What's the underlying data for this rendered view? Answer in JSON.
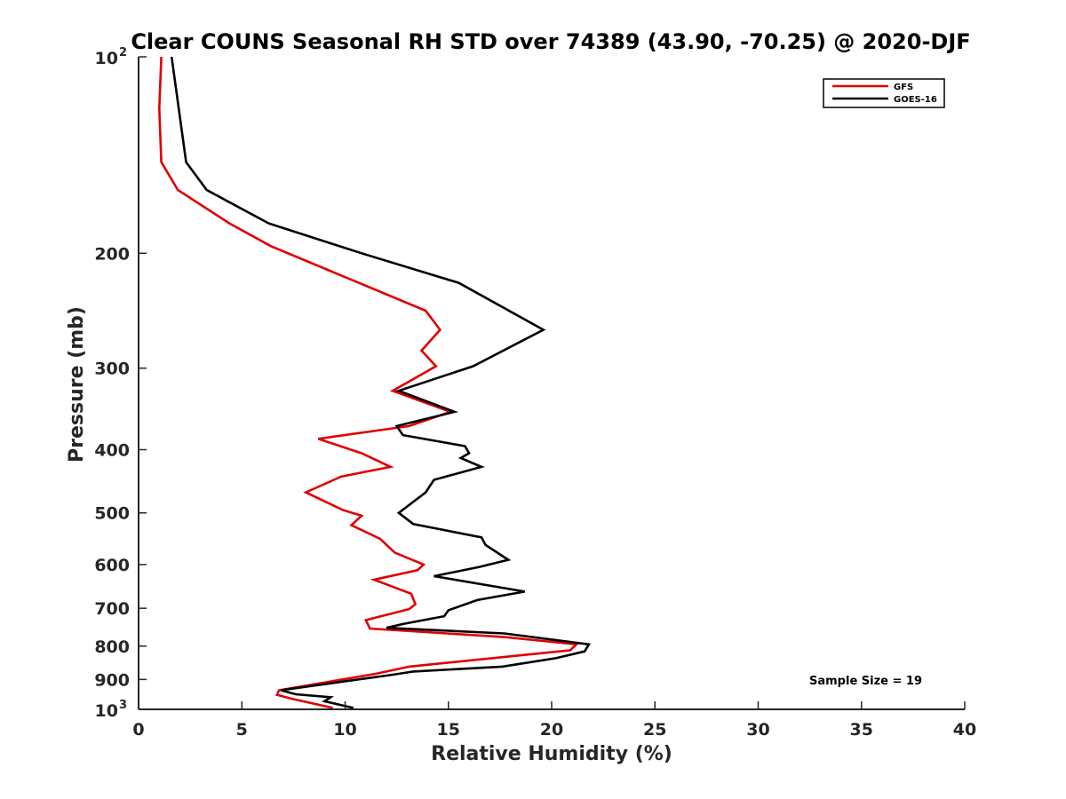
{
  "chart_data": {
    "type": "line",
    "title": "Clear COUNS Seasonal RH STD over 74389 (43.90, -70.25) @ 2020-DJF",
    "xlabel": "Relative Humidity (%)",
    "ylabel": "Pressure (mb)",
    "xlim": [
      0,
      40
    ],
    "ylim": [
      100,
      1000
    ],
    "y_scale": "log",
    "y_reversed": true,
    "grid": false,
    "legend_position": "top-right",
    "x_ticks": [
      "0",
      "5",
      "10",
      "15",
      "20",
      "25",
      "30",
      "35",
      "40"
    ],
    "y_ticks": [
      {
        "value": 100,
        "base": "10",
        "exp": "2"
      },
      {
        "value": 200,
        "base": "200",
        "exp": ""
      },
      {
        "value": 300,
        "base": "300",
        "exp": ""
      },
      {
        "value": 400,
        "base": "400",
        "exp": ""
      },
      {
        "value": 500,
        "base": "500",
        "exp": ""
      },
      {
        "value": 600,
        "base": "600",
        "exp": ""
      },
      {
        "value": 700,
        "base": "700",
        "exp": ""
      },
      {
        "value": 800,
        "base": "800",
        "exp": ""
      },
      {
        "value": 900,
        "base": "900",
        "exp": ""
      },
      {
        "value": 1000,
        "base": "10",
        "exp": "3"
      }
    ],
    "annotation": "Sample Size = 19",
    "series": [
      {
        "name": "GFS",
        "color": "#e00000",
        "x": [
          1.1,
          1.0,
          1.1,
          1.9,
          4.4,
          6.4,
          13.9,
          14.6,
          13.7,
          14.4,
          12.3,
          15.1,
          13.1,
          8.7,
          10.8,
          12.2,
          9.8,
          8.1,
          9.9,
          10.8,
          10.3,
          11.7,
          12.4,
          13.8,
          13.5,
          11.4,
          13.2,
          13.4,
          13.1,
          11.0,
          11.2,
          17.7,
          21.2,
          20.9,
          13.1,
          11.5,
          6.8,
          6.7,
          7.4,
          9.4
        ],
        "y": [
          100,
          120,
          145,
          160,
          180,
          195,
          245,
          262,
          282,
          298,
          325,
          350,
          368,
          385,
          405,
          425,
          440,
          465,
          495,
          505,
          522,
          548,
          575,
          600,
          612,
          633,
          665,
          690,
          702,
          730,
          752,
          775,
          795,
          812,
          860,
          882,
          935,
          950,
          963,
          995
        ]
      },
      {
        "name": "GOES-16",
        "color": "#000000",
        "x": [
          1.6,
          2.3,
          3.3,
          6.3,
          10.8,
          15.5,
          19.6,
          16.2,
          12.6,
          15.3,
          12.5,
          12.8,
          15.8,
          16.0,
          15.6,
          16.6,
          14.3,
          13.9,
          12.6,
          13.3,
          16.6,
          16.8,
          17.9,
          16.5,
          14.3,
          18.7,
          16.4,
          15.0,
          14.8,
          12.8,
          12.0,
          17.7,
          21.8,
          21.6,
          20.2,
          17.6,
          13.3,
          12.3,
          6.9,
          7.6,
          9.3,
          9.0,
          10.4
        ],
        "y": [
          100,
          145,
          160,
          180,
          200,
          222,
          262,
          298,
          325,
          350,
          368,
          380,
          395,
          405,
          412,
          425,
          445,
          465,
          500,
          520,
          545,
          560,
          590,
          605,
          625,
          660,
          680,
          705,
          720,
          740,
          750,
          765,
          795,
          815,
          835,
          860,
          875,
          885,
          935,
          948,
          958,
          972,
          995
        ]
      }
    ]
  }
}
